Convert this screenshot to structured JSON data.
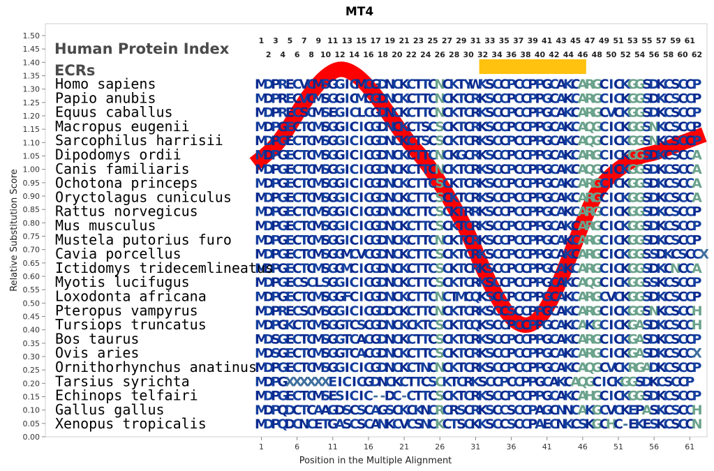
{
  "chart_data": {
    "type": "line",
    "title": "MT4",
    "xlabel": "Position in the Multiple Alignment",
    "ylabel": "Relative Substitution Score",
    "xlim": [
      0,
      63
    ],
    "ylim": [
      0.0,
      1.5
    ],
    "y_ticks": [
      "0.00",
      "0.05",
      "0.10",
      "0.15",
      "0.20",
      "0.25",
      "0.30",
      "0.35",
      "0.40",
      "0.45",
      "0.50",
      "0.55",
      "0.60",
      "0.65",
      "0.70",
      "0.75",
      "0.80",
      "0.85",
      "0.90",
      "0.95",
      "1.00",
      "1.05",
      "1.10",
      "1.15",
      "1.20",
      "1.25",
      "1.30",
      "1.35",
      "1.40",
      "1.45",
      "1.50"
    ],
    "x_ticks": [
      1,
      6,
      11,
      16,
      21,
      26,
      31,
      36,
      41,
      46,
      51,
      56,
      61
    ],
    "x_tick_labels": [
      "1",
      "6",
      "11",
      "16",
      "21",
      "26",
      "31",
      "36",
      "41",
      "46",
      "51",
      "56",
      "61"
    ],
    "grid": false,
    "heading_lines": [
      "Human Protein Index",
      "ECRs"
    ],
    "top_positions_odd": [
      "1",
      "3",
      "5",
      "7",
      "9",
      "11",
      "13",
      "15",
      "17",
      "19",
      "21",
      "23",
      "25",
      "27",
      "29",
      "31",
      "33",
      "35",
      "37",
      "39",
      "41",
      "43",
      "45",
      "47",
      "49",
      "51",
      "53",
      "55",
      "57",
      "59",
      "61"
    ],
    "top_positions_even": [
      "2",
      "4",
      "6",
      "8",
      "10",
      "12",
      "14",
      "16",
      "18",
      "20",
      "22",
      "24",
      "26",
      "28",
      "30",
      "32",
      "34",
      "36",
      "38",
      "40",
      "42",
      "44",
      "46",
      "48",
      "50",
      "52",
      "54",
      "56",
      "58",
      "60",
      "62"
    ],
    "ecr_regions": [
      {
        "start": 32,
        "end": 46,
        "color": "#ffc20e"
      }
    ],
    "series": [
      {
        "color": "#ff0000",
        "x": [
          0,
          2,
          4,
          6,
          8,
          10,
          12,
          14,
          16,
          18,
          20,
          22,
          24,
          26,
          28,
          30,
          32,
          34,
          36,
          38,
          40,
          42,
          44,
          46,
          48,
          50,
          52,
          54,
          56,
          58,
          60,
          62,
          63
        ],
        "y": [
          1.02,
          1.06,
          1.12,
          1.21,
          1.29,
          1.35,
          1.38,
          1.36,
          1.31,
          1.24,
          1.16,
          1.09,
          1.03,
          0.95,
          0.86,
          0.76,
          0.63,
          0.52,
          0.44,
          0.41,
          0.44,
          0.53,
          0.66,
          0.8,
          0.92,
          0.98,
          1.02,
          1.05,
          1.06,
          1.08,
          1.1,
          1.12,
          1.13
        ]
      }
    ],
    "species": [
      {
        "name": "Homo sapiens",
        "seq": "MDPRECVCMSGGICMCGDNCKCTTCNCKTYWKSCCPCCPPGCAKCARGCICKGGSDKCSCCP"
      },
      {
        "name": "Papio anubis",
        "seq": "MDPRECVCMSGGICMCGDNCKCTTCNCKTCRKSCCPCCPPGCAKCARGCICKGGSDKCSCCP"
      },
      {
        "name": "Equus caballus",
        "seq": "MDPRECSCMSEGICLCGDNCKCTTCNCKTCRKSCCPCCPPGCAKCARGCVCKGGSDKCSCCP"
      },
      {
        "name": "Macropus eugenii",
        "seq": "MDPGECTCMSGGICICGDNCKCTSCSCKTCRKSCCPCCPPGCAKCAQGCICKGGSNKCSCCP"
      },
      {
        "name": "Sarcophilus harrisii",
        "seq": "MDPGECTCMSGGICICGDNCKCTSCSCKTCRKSCCPCCPPGCAKCAQGCICKGGSNKCSCCP"
      },
      {
        "name": "Dipodomys ordii",
        "seq": "MDPGECTCMSGGICICGDNCKCTTCNCKGCRKSCCPCCPPGCAKCARGCICKGGSDKCSCCA"
      },
      {
        "name": "Canis familiaris",
        "seq": "MDPGECTCMSGGICICGDNCKCTTCNCKTCRKSCCPCCPPGCAKCAQGCICKGGSDKCSCCA"
      },
      {
        "name": "Ochotona princeps",
        "seq": "MDPGECTCMSGGICICGDNCKCTTCSCKTCRKSCCPCCPPGCAKCARGCICKGGSDKCSCCA"
      },
      {
        "name": "Oryctolagus cuniculus",
        "seq": "MDPGECTCMSGGICICGDNCKCTTCSCKTCRKSCCPCCPPGCAKCARGCICKGGSDKCSCCA"
      },
      {
        "name": "Rattus norvegicus",
        "seq": "MDPGECTCMSGGICICGDNCKCTTCSCKTRRKSCCPCCPPGCAKCARGCICKGGSDKCSCCP"
      },
      {
        "name": "Mus musculus",
        "seq": "MDPGECTCMSGGICICGDNCKCTTCSCKTCRKSCCPCCPPGCAKCARGCICKGGSDKCSCCP"
      },
      {
        "name": "Mustela putorius furo",
        "seq": "MDPGECTCMSGGICICGDNCKCTTCNCKTCRKSCCPCCPPGCAKCARGCICKGGSDKCSCCP"
      },
      {
        "name": "Cavia porcellus",
        "seq": "MDPGECTCMSGGMCVCGDNCKCTTCSCKTCRKSCCPCCPPGCAKCARGCICKGGSSDKCSCCX"
      },
      {
        "name": "Ictidomys tridecemlineatus",
        "seq": "MDPGECTCMSGGMCICGDNCKCTTCSCKTCRKSCCPCCPPGCAKCARGCICKGGSDKCNCCA"
      },
      {
        "name": "Myotis lucifugus",
        "seq": "MDPGECSCLSGGICICGDNCKCTTCSCKTCRKSCCPCCPPGCAKCAQGCICKGGSSKCSCCP"
      },
      {
        "name": "Loxodonta africana",
        "seq": "MDPGECTCMSGGFCICGDNCKCTTCNCTMCQKSCCPCCPPGCAKCARGCVCKGGSDKCSCCP"
      },
      {
        "name": "Pteropus vampyrus",
        "seq": "MDPRECSCMSGGICICGDDCKCTTCNCKTCRKSCCSCCPPGCAKCARGCICKGGSNKCSCCH"
      },
      {
        "name": "Tursiops truncatus",
        "seq": "MDPGKCTCMSGGTCSCGDNCKCKTCSCKTCQKSCCPCCPPGCAKCAKGCICKGASDKCSCCH"
      },
      {
        "name": "Bos taurus",
        "seq": "MDSGECTCMSGGTCACGDNCKCTTCSCKTCRKSCCPCCPPGCAKCARGCICKGASDKCSCCP"
      },
      {
        "name": "Ovis aries",
        "seq": "MDSGECTCMSGGTCACGDNCKCTTCSCKTCRKSCCPCCPPGCAKCARGCICKGASDKCSCCX"
      },
      {
        "name": "Ornithorhynchus anatinus",
        "seq": "MDPGECTCMSGGICICGDNCKCTNCNCKTCRKSCCPCCPPGCAKCAQGCVCKRGADKCSCCP"
      },
      {
        "name": "Tarsius syrichta",
        "seq": "MDPGXXXXXXEICICGDNCKCTTCSCKTCRKSCCPCCPPGCAKCAQGCICKGGSDKCSCCP"
      },
      {
        "name": "Echinops telfairi",
        "seq": "MDPGECTCMSESICIC--DC-CTTCSCKTCRKSCCPCCPPGCAKCAHGCICKGGSDKCSCCP"
      },
      {
        "name": "Gallus gallus",
        "seq": "MDPQDCTCAAGDSCSCAGSCKCKNCRCRSCRKSCCSCCPAGCNNCAKGCVCKEPASKCSCCH"
      },
      {
        "name": "Xenopus tropicalis",
        "seq": "MDPQDCNCETGASCSCANKCVCSNCKCTSCKKSCCSCCPAECNKCSKGCHC-EKESKCSCCN"
      }
    ]
  }
}
